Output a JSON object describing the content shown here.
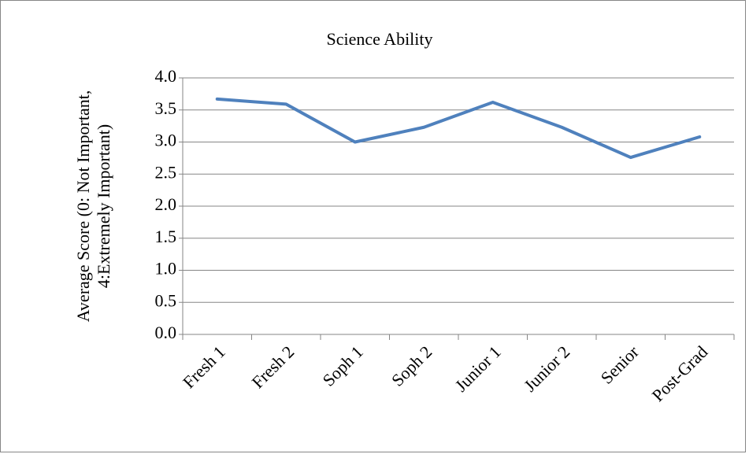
{
  "chart_data": {
    "type": "line",
    "title": "Science Ability",
    "y_label": [
      "Average Score (0: Not Important,",
      "4:Extremely Important)"
    ],
    "categories": [
      "Fresh 1",
      "Fresh 2",
      "Soph 1",
      "Soph 2",
      "Junior 1",
      "Junior 2",
      "Senior",
      "Post-Grad"
    ],
    "series": [
      {
        "color": "#4f81bd",
        "values": [
          3.67,
          3.59,
          3.0,
          3.23,
          3.62,
          3.23,
          2.76,
          3.08
        ]
      }
    ],
    "ylim": [
      0,
      4
    ],
    "yticks": [
      {
        "value": 0,
        "label": "0.0"
      },
      0.5,
      {
        "value": 1,
        "label": "1.0"
      },
      1.5,
      {
        "value": 2,
        "label": "2.0"
      },
      2.5,
      {
        "value": 3,
        "label": "3.0"
      },
      3.5,
      {
        "value": 4,
        "label": "4.0"
      }
    ],
    "grid": true
  }
}
